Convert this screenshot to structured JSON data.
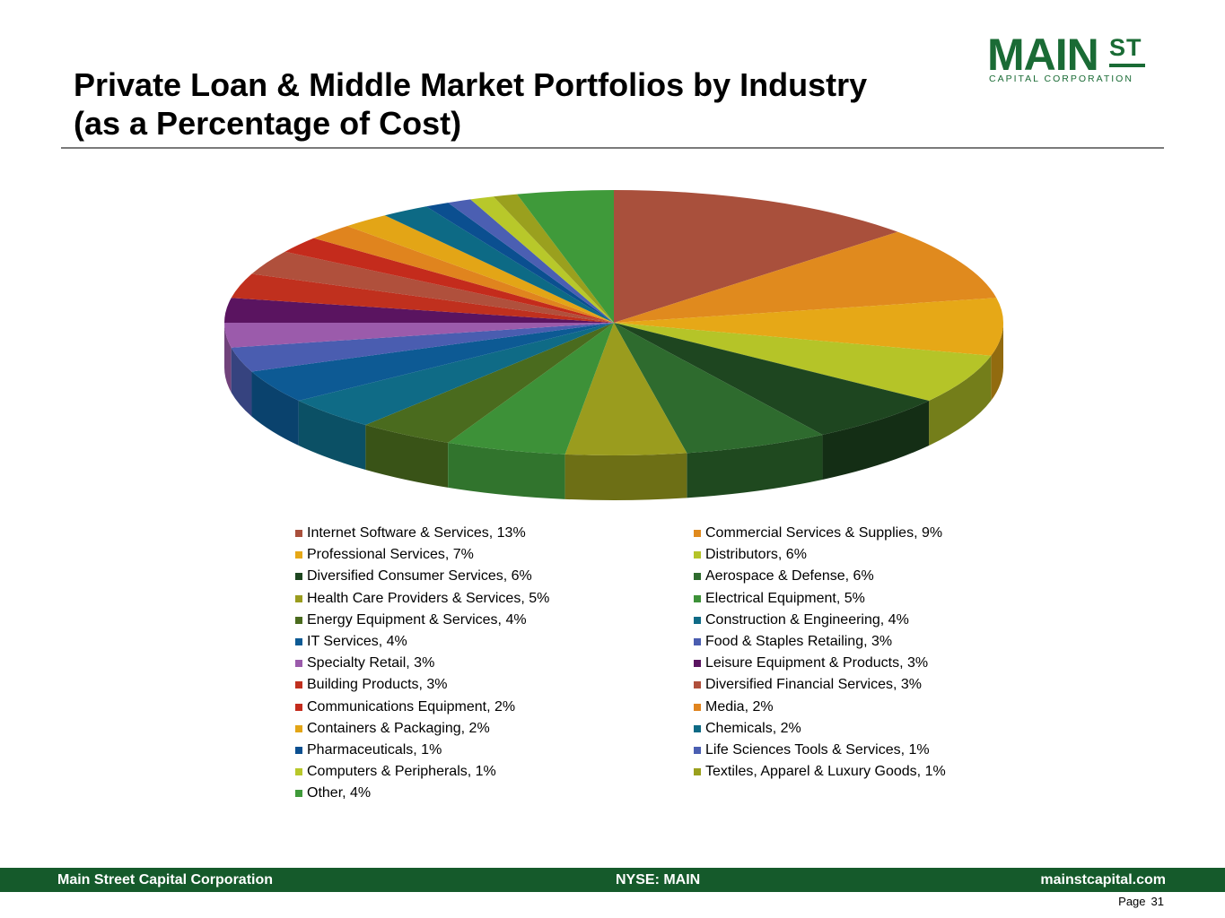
{
  "slide": {
    "title_line1": "Private Loan & Middle Market Portfolios by Industry",
    "title_line2": "(as a Percentage of Cost)",
    "page_label": "Page",
    "page_number": "31"
  },
  "logo": {
    "main": "MAIN",
    "superscript": "ST",
    "subtitle": "CAPITAL CORPORATION",
    "color": "#1a6b35"
  },
  "footer": {
    "company": "Main Street Capital Corporation",
    "ticker": "NYSE: MAIN",
    "website": "mainstcapital.com",
    "bar_color": "#155a2b"
  },
  "chart_data": {
    "type": "pie",
    "style": "3d",
    "legend_position": "bottom",
    "series": [
      {
        "label": "Internet Software & Services, 13%",
        "value": 13,
        "color": "#a9503c"
      },
      {
        "label": "Commercial Services & Supplies, 9%",
        "value": 9,
        "color": "#e08a1e"
      },
      {
        "label": "Professional Services, 7%",
        "value": 7,
        "color": "#e6a817"
      },
      {
        "label": "Distributors, 6%",
        "value": 6,
        "color": "#b5c428"
      },
      {
        "label": "Diversified Consumer Services, 6%",
        "value": 6,
        "color": "#1e4620"
      },
      {
        "label": "Aerospace & Defense, 6%",
        "value": 6,
        "color": "#2e6b2e"
      },
      {
        "label": "Health Care Providers & Services, 5%",
        "value": 5,
        "color": "#9a9c1e"
      },
      {
        "label": "Electrical Equipment, 5%",
        "value": 5,
        "color": "#3d9138"
      },
      {
        "label": "Energy Equipment & Services, 4%",
        "value": 4,
        "color": "#4a6b1e"
      },
      {
        "label": "Construction & Engineering, 4%",
        "value": 4,
        "color": "#0f6b86"
      },
      {
        "label": "IT Services, 4%",
        "value": 4,
        "color": "#0d5a94"
      },
      {
        "label": "Food & Staples Retailing, 3%",
        "value": 3,
        "color": "#4a5db0"
      },
      {
        "label": "Specialty Retail, 3%",
        "value": 3,
        "color": "#9b5bab"
      },
      {
        "label": "Leisure Equipment & Products, 3%",
        "value": 3,
        "color": "#5a1460"
      },
      {
        "label": "Building Products, 3%",
        "value": 3,
        "color": "#c0301e"
      },
      {
        "label": "Diversified Financial Services, 3%",
        "value": 3,
        "color": "#b0503c"
      },
      {
        "label": "Communications Equipment, 2%",
        "value": 2,
        "color": "#c42b1c"
      },
      {
        "label": "Media, 2%",
        "value": 2,
        "color": "#e0841e"
      },
      {
        "label": "Containers & Packaging, 2%",
        "value": 2,
        "color": "#e3a516"
      },
      {
        "label": "Chemicals, 2%",
        "value": 2,
        "color": "#0d6a85"
      },
      {
        "label": "Pharmaceuticals, 1%",
        "value": 1,
        "color": "#0b4f90"
      },
      {
        "label": "Life Sciences Tools & Services, 1%",
        "value": 1,
        "color": "#4b5fb2"
      },
      {
        "label": "Computers & Peripherals, 1%",
        "value": 1,
        "color": "#b8c82a"
      },
      {
        "label": "Textiles, Apparel & Luxury Goods, 1%",
        "value": 1,
        "color": "#9aa01e"
      },
      {
        "label": "Other, 4%",
        "value": 4,
        "color": "#3f9a3a"
      }
    ]
  }
}
